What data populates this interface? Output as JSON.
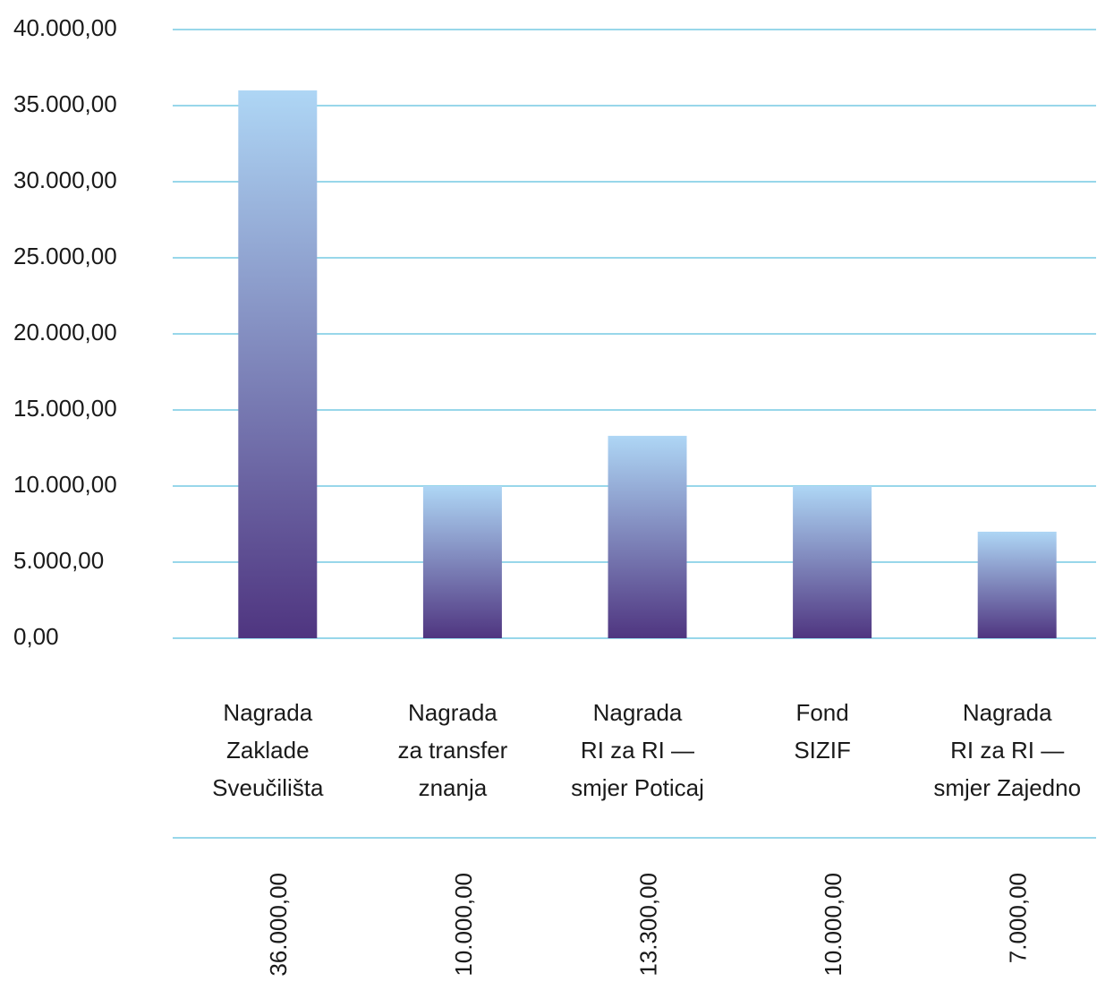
{
  "chart_data": {
    "type": "bar",
    "categories": [
      [
        "Nagrada",
        "Zaklade",
        "Sveučilišta"
      ],
      [
        "Nagrada",
        "za transfer",
        "znanja"
      ],
      [
        "Nagrada",
        "RI za RI —",
        "smjer Poticaj"
      ],
      [
        "Fond",
        "SIZIF"
      ],
      [
        "Nagrada",
        "RI za RI —",
        "smjer Zajedno"
      ]
    ],
    "values": [
      36000,
      10000,
      13300,
      10000,
      7000
    ],
    "value_labels": [
      "36.000,00",
      "10.000,00",
      "13.300,00",
      "10.000,00",
      "7.000,00"
    ],
    "colors": [
      "#aed6f5",
      "#4f3580"
    ],
    "grid_color": "#5bbfde",
    "ylim": [
      0,
      40000
    ],
    "yticks": [
      {
        "value": 0,
        "label": "0,00"
      },
      {
        "value": 5000,
        "label": "5.000,00"
      },
      {
        "value": 10000,
        "label": "10.000,00"
      },
      {
        "value": 15000,
        "label": "15.000,00"
      },
      {
        "value": 20000,
        "label": "20.000,00"
      },
      {
        "value": 25000,
        "label": "25.000,00"
      },
      {
        "value": 30000,
        "label": "30.000,00"
      },
      {
        "value": 35000,
        "label": "35.000,00"
      },
      {
        "value": 40000,
        "label": "40.000,00"
      }
    ],
    "grid": true
  }
}
